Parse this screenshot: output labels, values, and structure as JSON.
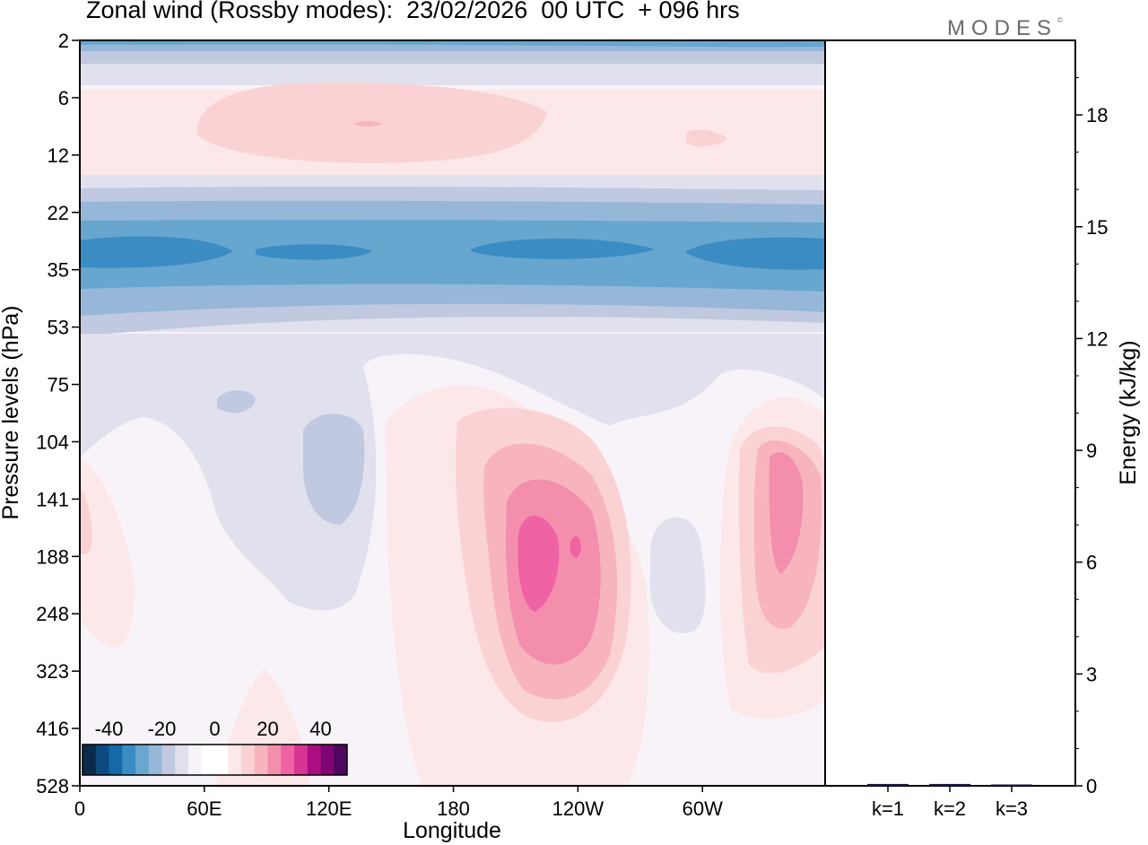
{
  "title": "Zonal wind (Rossby modes):  23/02/2026  00 UTC  + 096 hrs",
  "logo": "MODES",
  "logo_mark": "©",
  "chart_data": [
    {
      "type": "heatmap",
      "title": "Zonal wind (Rossby modes):  23/02/2026  00 UTC  + 096 hrs",
      "xlabel": "Longitude",
      "ylabel": "Pressure levels (hPa)",
      "x_ticks": [
        "0",
        "60E",
        "120E",
        "180",
        "120W",
        "60W"
      ],
      "x_tick_lon": [
        0,
        60,
        120,
        180,
        240,
        300
      ],
      "x_range": [
        0,
        360
      ],
      "y_ticks": [
        "2",
        "6",
        "12",
        "22",
        "35",
        "53",
        "75",
        "104",
        "141",
        "188",
        "248",
        "323",
        "416",
        "528"
      ],
      "colorbar": {
        "labels": [
          "-40",
          "-20",
          "0",
          "20",
          "40"
        ],
        "label_values": [
          -40,
          -20,
          0,
          20,
          40
        ],
        "range": [
          -50,
          50
        ],
        "step": 5,
        "colors": [
          "#0a2a4a",
          "#0d4a80",
          "#1469a8",
          "#3a8cc3",
          "#67a6cf",
          "#96b7d8",
          "#c0c9e0",
          "#e1e1ee",
          "#f7f3f8",
          "#ffffff",
          "#ffffff",
          "#fce8e8",
          "#fbd2d4",
          "#f7b4bd",
          "#f48ead",
          "#ef62a3",
          "#d83495",
          "#ac0e82",
          "#7f0775",
          "#4f065e"
        ]
      },
      "field_regions": [
        {
          "lon": [
            0,
            360
          ],
          "level_idx": [
            0,
            0.5
          ],
          "value": -25,
          "label": "top blue band"
        },
        {
          "lon": [
            50,
            220
          ],
          "level_idx": [
            1.1,
            2.2
          ],
          "value": 8,
          "label": "upper pink patch"
        },
        {
          "lon": [
            0,
            360
          ],
          "level_idx": [
            3.0,
            5.5
          ],
          "value": -28,
          "label": "stratospheric easterly jet"
        },
        {
          "lon": [
            205,
            255
          ],
          "level_idx": [
            8.2,
            11.2
          ],
          "value": 22,
          "label": "pink maximum 120W"
        },
        {
          "lon": [
            330,
            360
          ],
          "level_idx": [
            7.5,
            11.0
          ],
          "value": 18,
          "label": "pink maximum east"
        },
        {
          "lon": [
            110,
            140
          ],
          "level_idx": [
            7.5,
            9.3
          ],
          "value": -8,
          "label": "blue patch 120E"
        }
      ]
    },
    {
      "type": "bar",
      "ylabel": "Energy (kJ/kg)",
      "categories": [
        "k=1",
        "k=2",
        "k=3"
      ],
      "values": [
        0.05,
        0.05,
        0.03
      ],
      "ylim": [
        0,
        20
      ],
      "y_ticks": [
        "0",
        "3",
        "6",
        "9",
        "12",
        "15",
        "18"
      ],
      "y_tick_values": [
        0,
        3,
        6,
        9,
        12,
        15,
        18
      ]
    }
  ]
}
